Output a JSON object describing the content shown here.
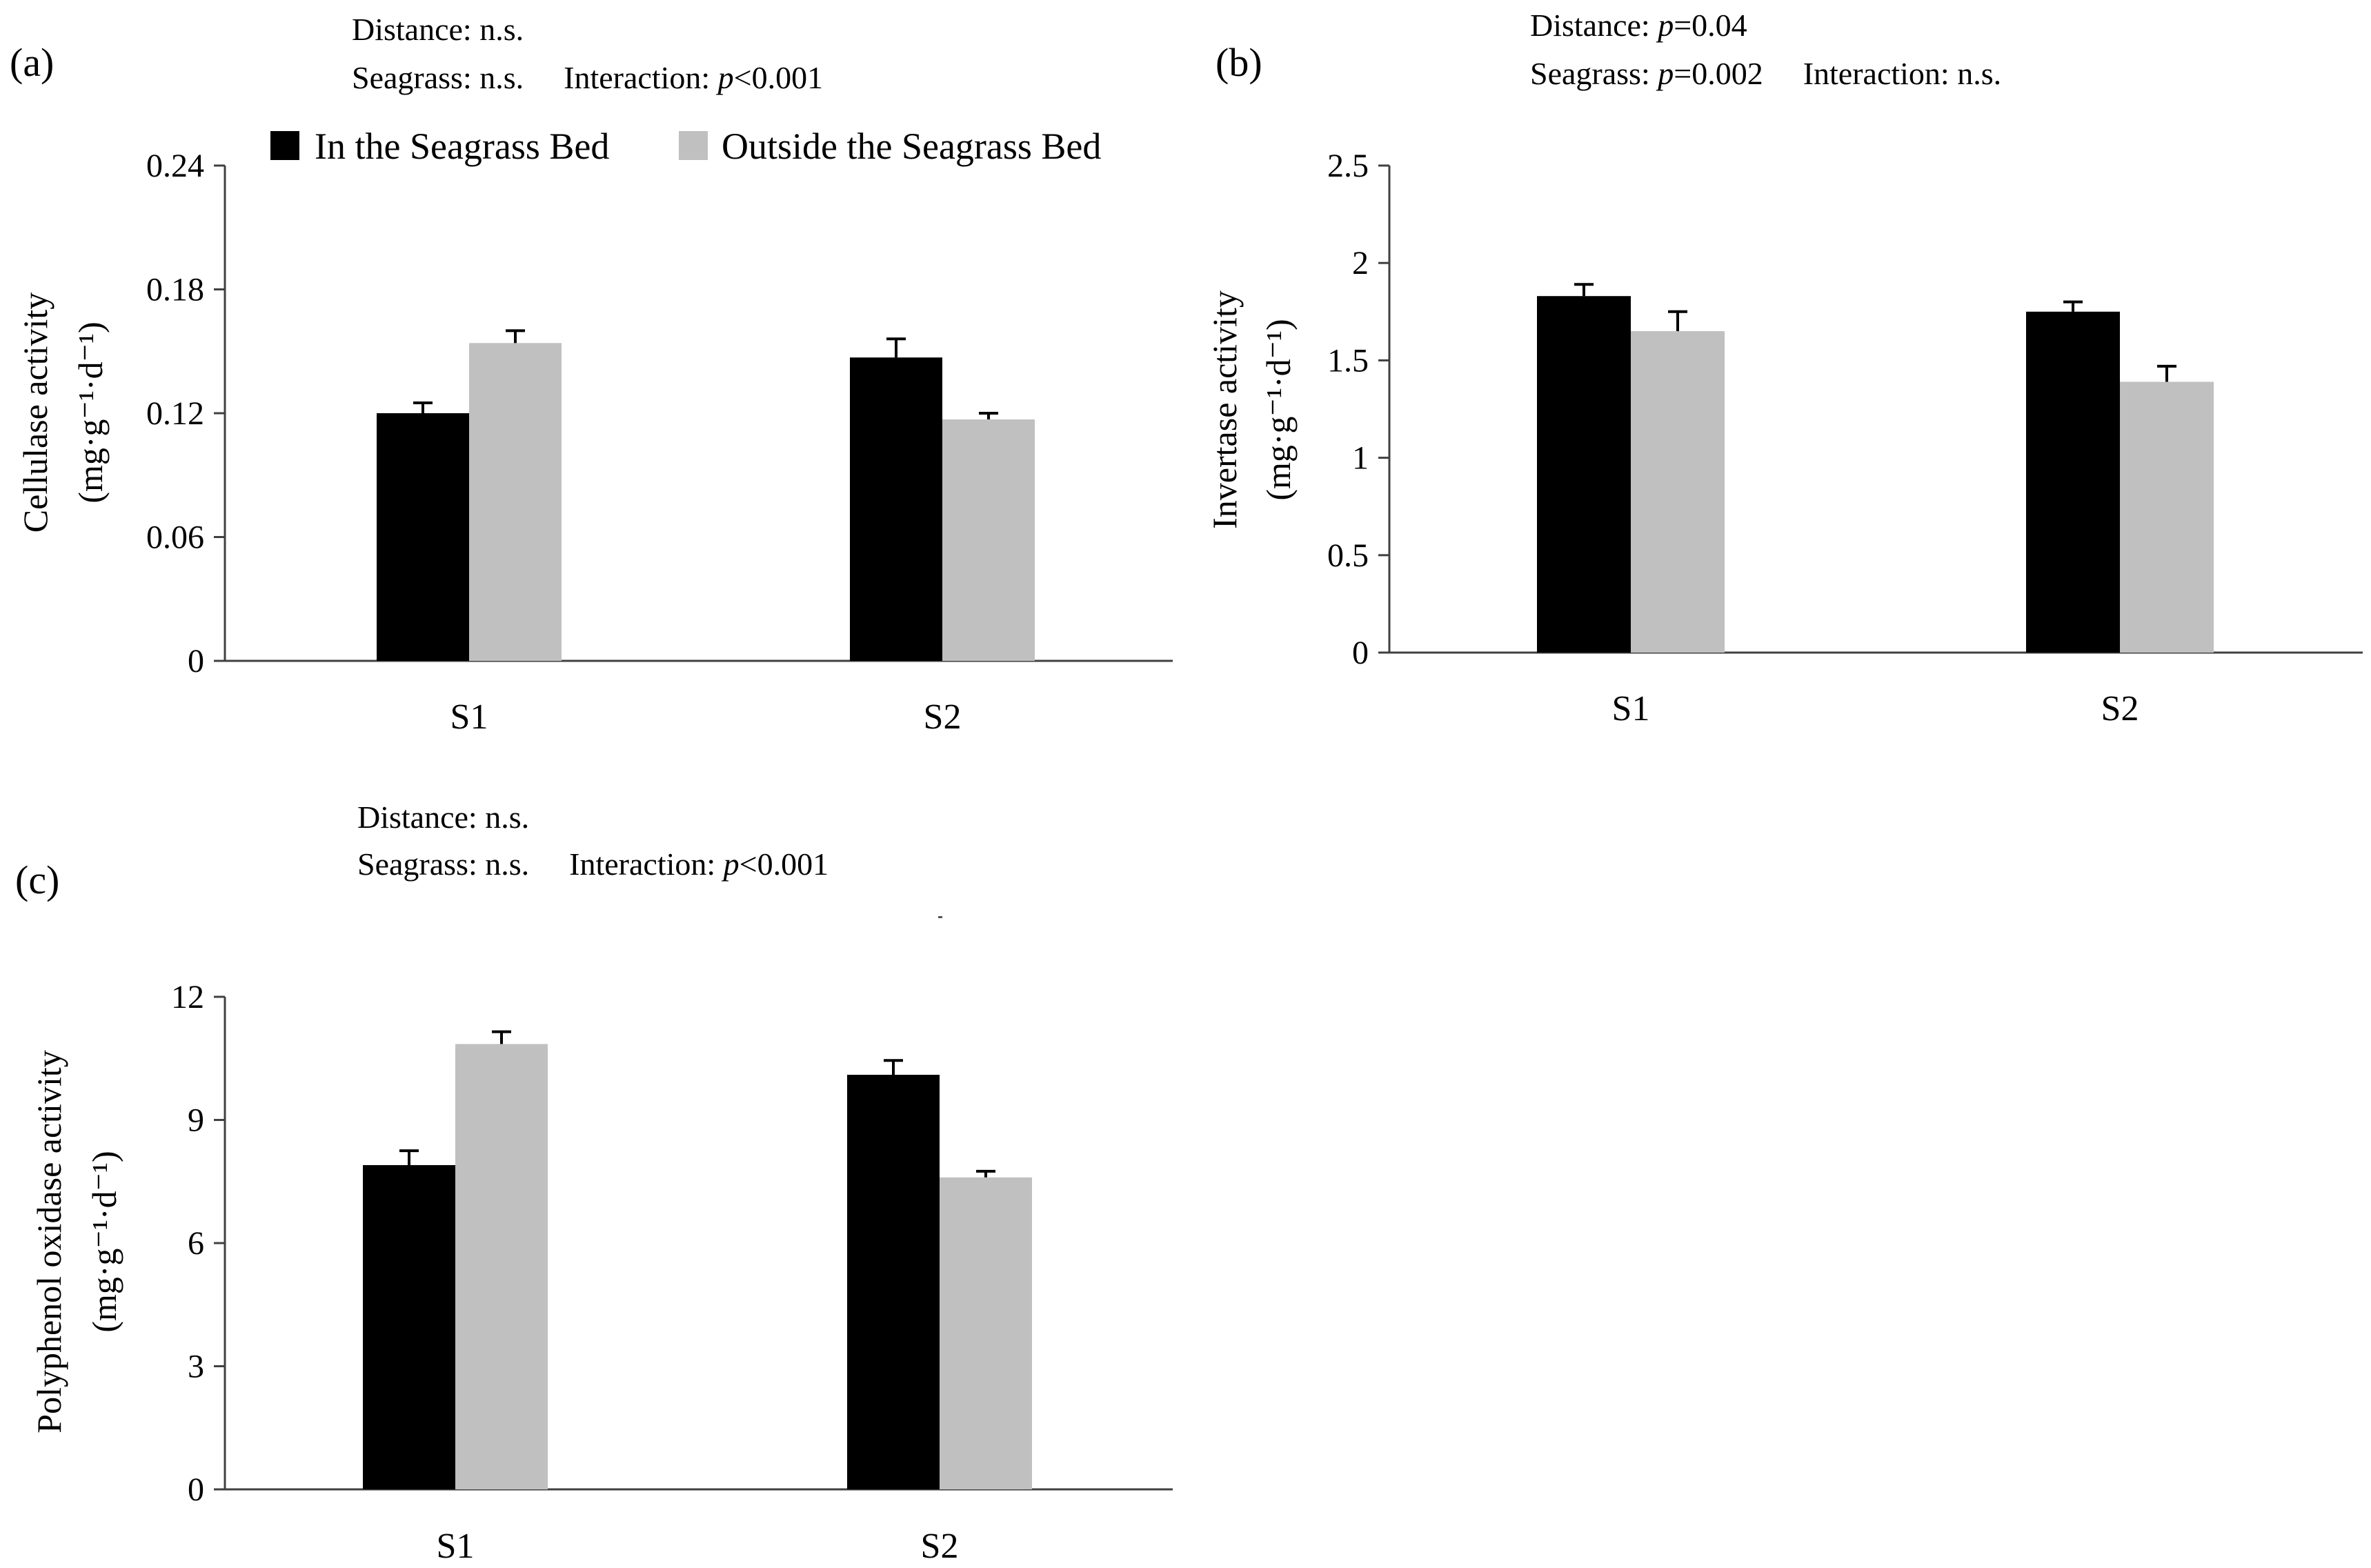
{
  "colors": {
    "in_bed": "#000000",
    "outside_bed": "#c0c0c0",
    "axis": "#404040"
  },
  "legend": [
    {
      "label": "In the Seagrass Bed",
      "color": "#000000"
    },
    {
      "label": "Outside the Seagrass Bed",
      "color": "#c0c0c0"
    }
  ],
  "chart_data": [
    {
      "id": "a",
      "type": "bar",
      "panel_label": "(a)",
      "stats": {
        "distance_prefix": "Distance: ",
        "distance_p": "",
        "distance_value": "n.s.",
        "seagrass_prefix": "Seagrass: ",
        "seagrass_p": "",
        "seagrass_value": "n.s.",
        "interaction_prefix": "Interaction: ",
        "interaction_p": "p",
        "interaction_value": "<0.001"
      },
      "ylabel": "Cellulase activity",
      "yunit": "(mg·g⁻¹·d⁻¹)",
      "ylim": [
        0,
        0.24
      ],
      "yticks": [
        "0",
        "0.06",
        "0.12",
        "0.18",
        "0.24"
      ],
      "categories": [
        "S1",
        "S2"
      ],
      "series": [
        {
          "name": "In the Seagrass Bed",
          "values": [
            0.12,
            0.147
          ],
          "errors": [
            0.005,
            0.009
          ]
        },
        {
          "name": "Outside the Seagrass Bed",
          "values": [
            0.154,
            0.117
          ],
          "errors": [
            0.006,
            0.003
          ]
        }
      ]
    },
    {
      "id": "b",
      "type": "bar",
      "panel_label": "(b)",
      "stats": {
        "distance_prefix": "Distance: ",
        "distance_p": "p",
        "distance_value": "=0.04",
        "seagrass_prefix": "Seagrass: ",
        "seagrass_p": "p",
        "seagrass_value": "=0.002",
        "interaction_prefix": "Interaction: ",
        "interaction_p": "",
        "interaction_value": "n.s."
      },
      "ylabel": "Invertase activity",
      "yunit": "(mg·g⁻¹·d⁻¹)",
      "ylim": [
        0,
        2.5
      ],
      "yticks": [
        "0",
        "0.5",
        "1",
        "1.5",
        "2",
        "2.5"
      ],
      "categories": [
        "S1",
        "S2"
      ],
      "series": [
        {
          "name": "In the Seagrass Bed",
          "values": [
            1.83,
            1.75
          ],
          "errors": [
            0.06,
            0.05
          ]
        },
        {
          "name": "Outside the Seagrass Bed",
          "values": [
            1.65,
            1.39
          ],
          "errors": [
            0.1,
            0.08
          ]
        }
      ]
    },
    {
      "id": "c",
      "type": "bar",
      "panel_label": "(c)",
      "stats": {
        "distance_prefix": "Distance: ",
        "distance_p": "",
        "distance_value": "n.s.",
        "seagrass_prefix": "Seagrass: ",
        "seagrass_p": "",
        "seagrass_value": "n.s.",
        "interaction_prefix": "Interaction: ",
        "interaction_p": "p",
        "interaction_value": "<0.001"
      },
      "ylabel": "Polyphenol oxidase activity",
      "yunit": "(mg·g⁻¹·d⁻¹)",
      "ylim": [
        0,
        12
      ],
      "yticks": [
        "0",
        "3",
        "6",
        "9",
        "12"
      ],
      "categories": [
        "S1",
        "S2"
      ],
      "series": [
        {
          "name": "In the Seagrass Bed",
          "values": [
            7.9,
            10.1
          ],
          "errors": [
            0.35,
            0.35
          ]
        },
        {
          "name": "Outside the Seagrass Bed",
          "values": [
            10.85,
            7.6
          ],
          "errors": [
            0.3,
            0.15
          ]
        }
      ]
    }
  ]
}
